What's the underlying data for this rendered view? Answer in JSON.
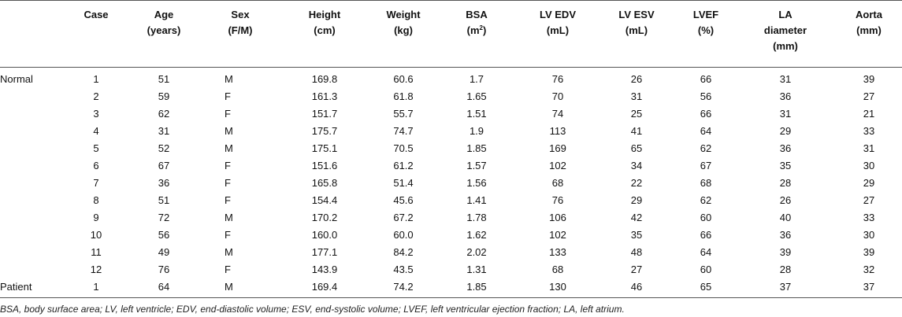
{
  "table": {
    "headers": [
      {
        "line1": "Case",
        "line2": "",
        "line3": ""
      },
      {
        "line1": "Age",
        "line2": "(years)",
        "line3": ""
      },
      {
        "line1": "Sex",
        "line2": "(F/M)",
        "line3": ""
      },
      {
        "line1": "Height",
        "line2": "(cm)",
        "line3": ""
      },
      {
        "line1": "Weight",
        "line2": "(kg)",
        "line3": ""
      },
      {
        "line1": "BSA",
        "line2": "(m",
        "sup": "2",
        "line2_tail": ")",
        "line3": ""
      },
      {
        "line1": "LV EDV",
        "line2": "(mL)",
        "line3": ""
      },
      {
        "line1": "LV ESV",
        "line2": "(mL)",
        "line3": ""
      },
      {
        "line1": "LVEF",
        "line2": "(%)",
        "line3": ""
      },
      {
        "line1": "LA",
        "line2": "diameter",
        "line3": "(mm)"
      },
      {
        "line1": "Aorta",
        "line2": "(mm)",
        "line3": ""
      }
    ],
    "group_labels": {
      "normal": "Normal",
      "patient": "Patient"
    },
    "rows": [
      {
        "group": "Normal",
        "cells": [
          "1",
          "51",
          "M",
          "169.8",
          "60.6",
          "1.7",
          "76",
          "26",
          "66",
          "31",
          "39"
        ]
      },
      {
        "group": "",
        "cells": [
          "2",
          "59",
          "F",
          "161.3",
          "61.8",
          "1.65",
          "70",
          "31",
          "56",
          "36",
          "27"
        ]
      },
      {
        "group": "",
        "cells": [
          "3",
          "62",
          "F",
          "151.7",
          "55.7",
          "1.51",
          "74",
          "25",
          "66",
          "31",
          "21"
        ]
      },
      {
        "group": "",
        "cells": [
          "4",
          "31",
          "M",
          "175.7",
          "74.7",
          "1.9",
          "113",
          "41",
          "64",
          "29",
          "33"
        ]
      },
      {
        "group": "",
        "cells": [
          "5",
          "52",
          "M",
          "175.1",
          "70.5",
          "1.85",
          "169",
          "65",
          "62",
          "36",
          "31"
        ]
      },
      {
        "group": "",
        "cells": [
          "6",
          "67",
          "F",
          "151.6",
          "61.2",
          "1.57",
          "102",
          "34",
          "67",
          "35",
          "30"
        ]
      },
      {
        "group": "",
        "cells": [
          "7",
          "36",
          "F",
          "165.8",
          "51.4",
          "1.56",
          "68",
          "22",
          "68",
          "28",
          "29"
        ]
      },
      {
        "group": "",
        "cells": [
          "8",
          "51",
          "F",
          "154.4",
          "45.6",
          "1.41",
          "76",
          "29",
          "62",
          "26",
          "27"
        ]
      },
      {
        "group": "",
        "cells": [
          "9",
          "72",
          "M",
          "170.2",
          "67.2",
          "1.78",
          "106",
          "42",
          "60",
          "40",
          "33"
        ]
      },
      {
        "group": "",
        "cells": [
          "10",
          "56",
          "F",
          "160.0",
          "60.0",
          "1.62",
          "102",
          "35",
          "66",
          "36",
          "30"
        ]
      },
      {
        "group": "",
        "cells": [
          "11",
          "49",
          "M",
          "177.1",
          "84.2",
          "2.02",
          "133",
          "48",
          "64",
          "39",
          "39"
        ]
      },
      {
        "group": "",
        "cells": [
          "12",
          "76",
          "F",
          "143.9",
          "43.5",
          "1.31",
          "68",
          "27",
          "60",
          "28",
          "32"
        ]
      },
      {
        "group": "Patient",
        "cells": [
          "1",
          "64",
          "M",
          "169.4",
          "74.2",
          "1.85",
          "130",
          "46",
          "65",
          "37",
          "37"
        ]
      }
    ]
  },
  "footnote": "BSA, body surface area; LV, left ventricle; EDV, end-diastolic volume; ESV, end-systolic volume; LVEF, left ventricular ejection fraction; LA, left atrium."
}
